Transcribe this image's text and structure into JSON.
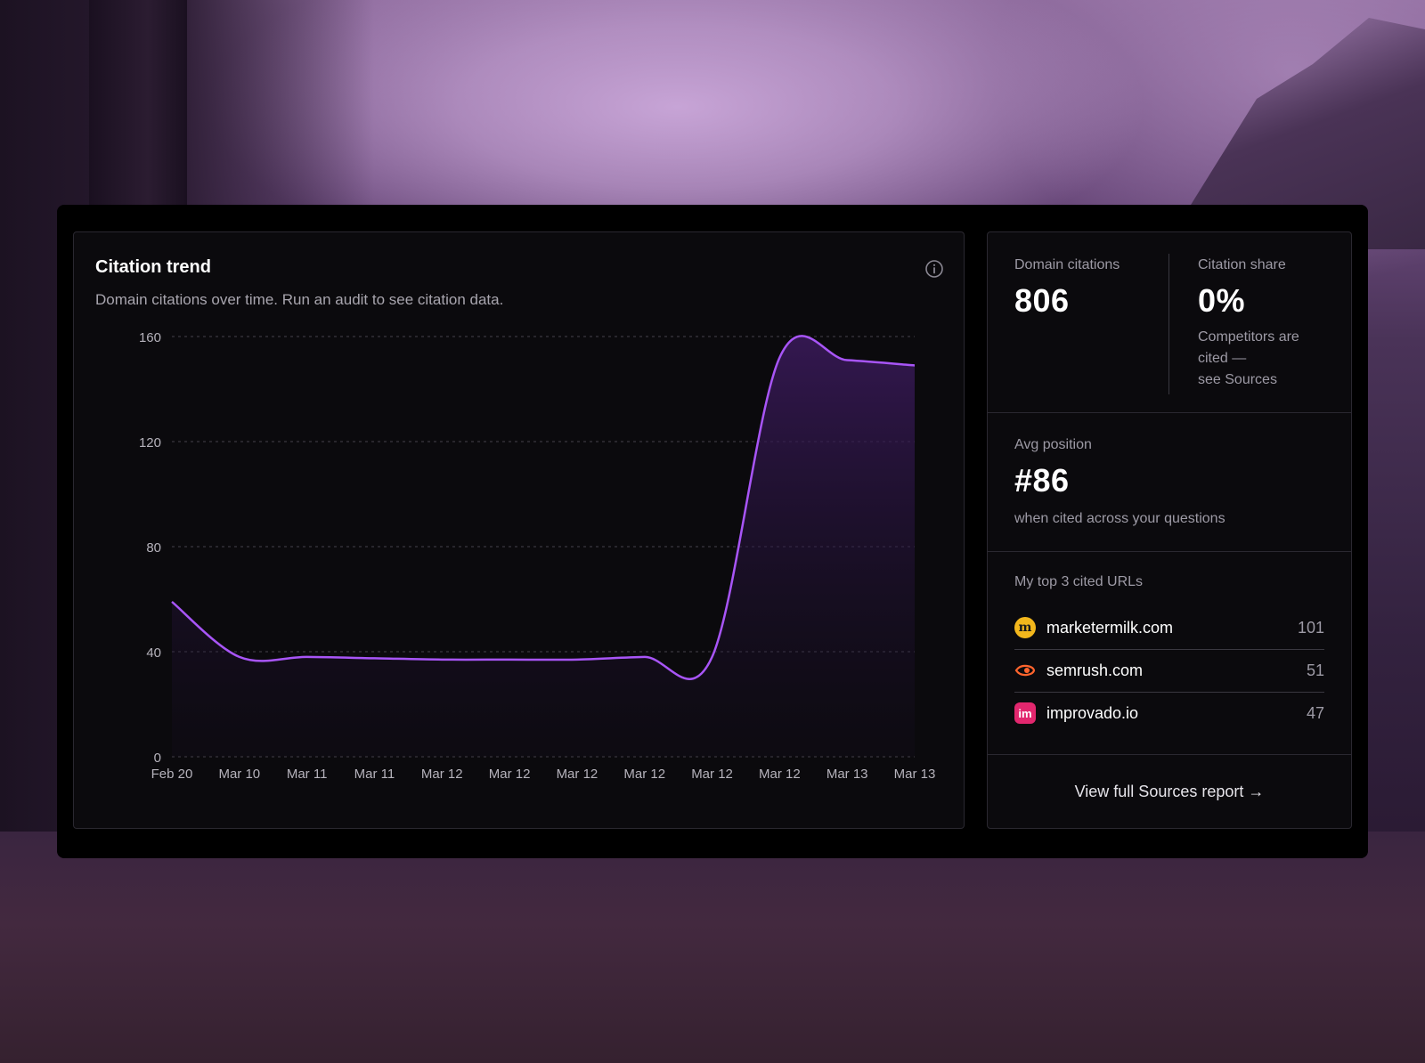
{
  "chart_card": {
    "title": "Citation trend",
    "subtitle": "Domain citations over time. Run an audit to see citation data."
  },
  "chart_data": {
    "type": "area",
    "title": "Citation trend",
    "subtitle": "Domain citations over time. Run an audit to see citation data.",
    "x_labels": [
      "Feb 20",
      "Mar 10",
      "Mar 11",
      "Mar 11",
      "Mar 12",
      "Mar 12",
      "Mar 12",
      "Mar 12",
      "Mar 12",
      "Mar 12",
      "Mar 13",
      "Mar 13"
    ],
    "y_ticks": [
      0,
      40,
      80,
      120,
      160
    ],
    "ylim": [
      0,
      160
    ],
    "grid": true,
    "series": [
      {
        "values": [
          59,
          38,
          38,
          37.5,
          37,
          37,
          37,
          38,
          38,
          152,
          151,
          149
        ]
      }
    ],
    "colors": {
      "line": "#a855f7",
      "grid": "#3a3840"
    }
  },
  "stats": {
    "domain_citations": {
      "label": "Domain citations",
      "value": "806"
    },
    "citation_share": {
      "label": "Citation share",
      "value": "0%",
      "note_line1": "Competitors are",
      "note_line2": "cited —",
      "note_line3": "see Sources"
    },
    "avg_position": {
      "label": "Avg position",
      "value": "#86",
      "note": "when cited across your questions"
    },
    "top_urls": {
      "label": "My top 3 cited URLs",
      "items": [
        {
          "icon": "marketermilk-icon",
          "name": "marketermilk.com",
          "count": "101"
        },
        {
          "icon": "semrush-icon",
          "name": "semrush.com",
          "count": "51"
        },
        {
          "icon": "improvado-icon",
          "name": "improvado.io",
          "count": "47"
        }
      ]
    },
    "footer_link": "View full Sources report →"
  },
  "favicons": {
    "marketermilk": "m",
    "improvado": "im"
  }
}
